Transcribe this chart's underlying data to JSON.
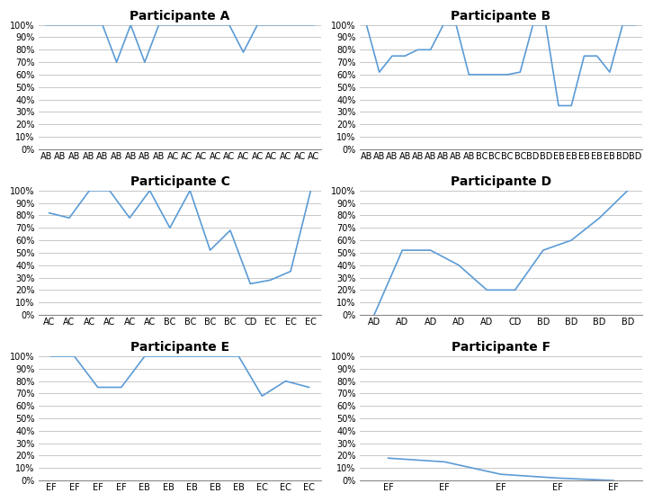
{
  "subplots": [
    {
      "title": "Participante A",
      "labels": [
        "AB",
        "AB",
        "AB",
        "AB",
        "AB",
        "AB",
        "AB",
        "AB",
        "AB",
        "AC",
        "AC",
        "AC",
        "AC",
        "AC",
        "AC",
        "AC",
        "AC",
        "AC",
        "AC",
        "AC"
      ],
      "values": [
        100,
        100,
        100,
        100,
        100,
        70,
        100,
        70,
        100,
        100,
        100,
        100,
        100,
        100,
        78,
        100,
        100,
        100,
        100,
        100
      ]
    },
    {
      "title": "Participante B",
      "labels": [
        "AB",
        "AB",
        "AB",
        "AB",
        "AB",
        "AB",
        "AB",
        "AB",
        "AB",
        "BC",
        "BC",
        "BC",
        "BC",
        "BD",
        "BD",
        "EB",
        "EB",
        "EB",
        "EB",
        "EB",
        "BD",
        "BD"
      ],
      "values": [
        100,
        62,
        75,
        75,
        80,
        80,
        100,
        100,
        60,
        60,
        60,
        60,
        62,
        100,
        100,
        35,
        35,
        75,
        75,
        62,
        100,
        100
      ]
    },
    {
      "title": "Participante C",
      "labels": [
        "AC",
        "AC",
        "AC",
        "AC",
        "AC",
        "AC",
        "BC",
        "BC",
        "BC",
        "BC",
        "CD",
        "EC",
        "EC",
        "EC"
      ],
      "values": [
        82,
        78,
        100,
        100,
        78,
        100,
        70,
        100,
        52,
        68,
        25,
        28,
        35,
        100
      ]
    },
    {
      "title": "Participante D",
      "labels": [
        "AD",
        "AD",
        "AD",
        "AD",
        "AD",
        "CD",
        "BD",
        "BD",
        "BD",
        "BD"
      ],
      "values": [
        0,
        52,
        52,
        40,
        20,
        20,
        52,
        60,
        78,
        100
      ]
    },
    {
      "title": "Participante E",
      "labels": [
        "EF",
        "EF",
        "EF",
        "EF",
        "EB",
        "EB",
        "EB",
        "EB",
        "EB",
        "EC",
        "EC",
        "EC"
      ],
      "values": [
        100,
        100,
        75,
        75,
        100,
        100,
        100,
        100,
        100,
        68,
        80,
        75
      ]
    },
    {
      "title": "Participante F",
      "labels": [
        "EF",
        "EF",
        "EF",
        "EF",
        "EF"
      ],
      "values": [
        18,
        15,
        5,
        2,
        0
      ]
    }
  ],
  "line_color": "#5B9BD5",
  "bg_color": "#FFFFFF",
  "grid_color": "#C8C8C8",
  "title_fontsize": 10,
  "tick_fontsize": 7,
  "ylim": [
    0,
    100
  ],
  "yticks": [
    0,
    10,
    20,
    30,
    40,
    50,
    60,
    70,
    80,
    90,
    100
  ]
}
